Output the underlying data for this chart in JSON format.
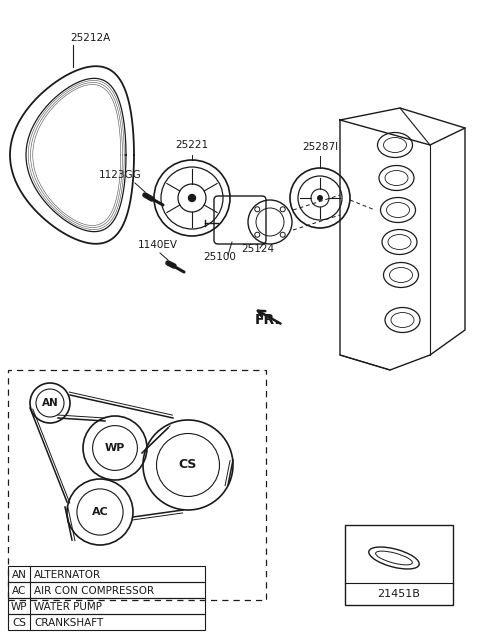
{
  "bg_color": "#ffffff",
  "line_color": "#1a1a1a",
  "parts": {
    "belt_label": "25212A",
    "pulley1_label": "25221",
    "bolt1_label": "1123GG",
    "bolt2_label": "1140EV",
    "pump_label": "25100",
    "gasket_label": "25124",
    "idler_label": "25287I",
    "part_num": "21451B"
  },
  "legend": {
    "AN": "ALTERNATOR",
    "AC": "AIR CON COMPRESSOR",
    "WP": "WATER PUMP",
    "CS": "CRANKSHAFT"
  },
  "fr_label": "FR."
}
